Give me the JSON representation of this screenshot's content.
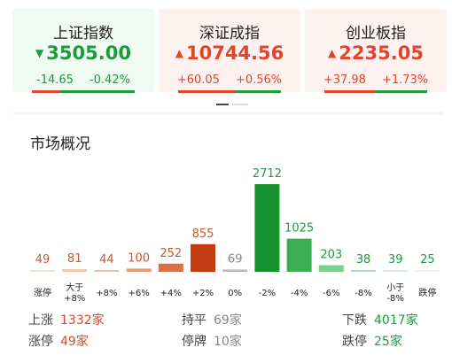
{
  "colors": {
    "up": "#e0462e",
    "down": "#1f9a3e",
    "neutral": "#888888",
    "up_bg": "#fdf2ef",
    "down_bg": "#effaf2"
  },
  "indices": [
    {
      "name": "上证指数",
      "direction": "down",
      "arrow_icon": "triangle-down-icon",
      "arrow": "▼",
      "price": "3505.00",
      "change": "-14.65",
      "pct": "-0.42%",
      "bar_up_fraction": 0.28
    },
    {
      "name": "深证成指",
      "direction": "up",
      "arrow_icon": "triangle-up-icon",
      "arrow": "▲",
      "price": "10744.56",
      "change": "+60.05",
      "pct": "+0.56%",
      "bar_up_fraction": 0.55
    },
    {
      "name": "创业板指",
      "direction": "up",
      "arrow_icon": "triangle-up-icon",
      "arrow": "▲",
      "price": "2235.05",
      "change": "+37.98",
      "pct": "+1.73%",
      "bar_up_fraction": 0.5
    }
  ],
  "section": {
    "title": "市场概况"
  },
  "chart_data": {
    "type": "bar",
    "categories": [
      "涨停",
      "大于\n+8%",
      "+8%",
      "+6%",
      "+4%",
      "+2%",
      "0%",
      "-2%",
      "-4%",
      "-6%",
      "-8%",
      "小于\n-8%",
      "跌停"
    ],
    "values": [
      49,
      81,
      44,
      100,
      252,
      855,
      69,
      2712,
      1025,
      203,
      38,
      39,
      25
    ],
    "value_labels": [
      "49",
      "81",
      "44",
      "100",
      "252",
      "855",
      "69",
      "2712",
      "1025",
      "203",
      "38",
      "39",
      "25"
    ],
    "bar_colors": [
      "#f6ddd4",
      "#f1c4b0",
      "#efbda6",
      "#e49a76",
      "#d86f45",
      "#c43b12",
      "#b5b5b5",
      "#14932f",
      "#3bad52",
      "#7ccf8e",
      "#a8dfb4",
      "#cfeed6",
      "#e3f5e7"
    ],
    "label_colors": [
      "#c45a35",
      "#c45a35",
      "#c45a35",
      "#c45a35",
      "#c45a35",
      "#c45a35",
      "#888888",
      "#1f9a3e",
      "#1f9a3e",
      "#1f9a3e",
      "#1f9a3e",
      "#1f9a3e",
      "#1f9a3e"
    ],
    "ylim": [
      0,
      2712
    ]
  },
  "stats": {
    "up": {
      "label": "上涨",
      "value": "1332家"
    },
    "flat": {
      "label": "持平",
      "value": "69家"
    },
    "down": {
      "label": "下跌",
      "value": "4017家"
    },
    "limit_up": {
      "label": "涨停",
      "value": "49家"
    },
    "suspended": {
      "label": "停牌",
      "value": "10家"
    },
    "limit_down": {
      "label": "跌停",
      "value": "25家"
    }
  }
}
